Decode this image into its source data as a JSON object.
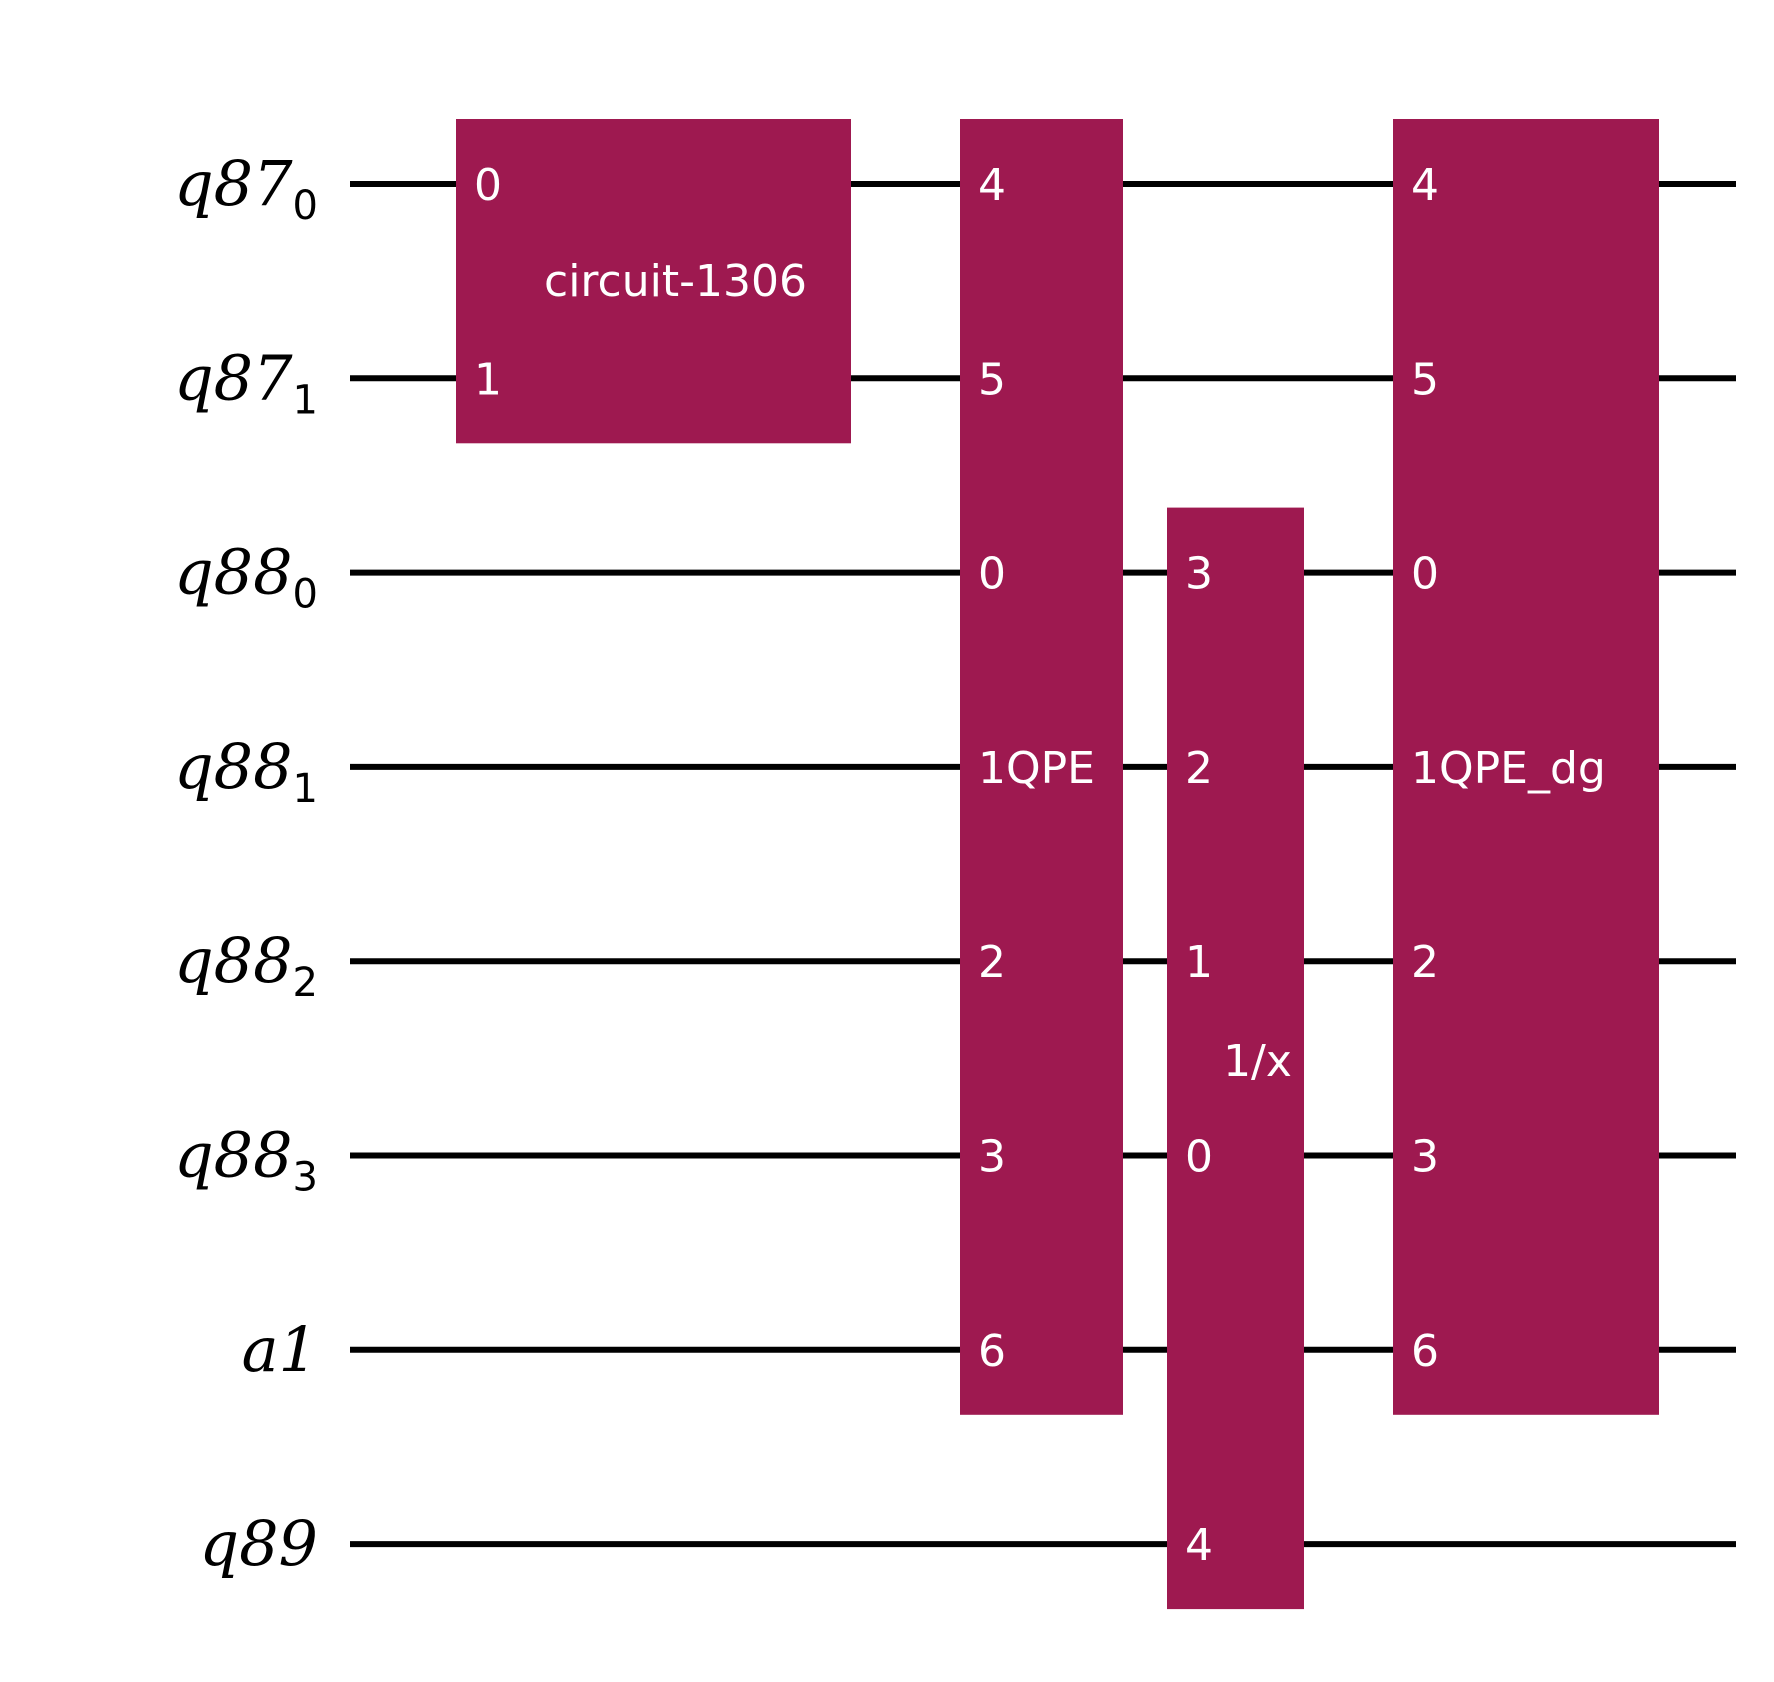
{
  "qubits": [
    {
      "name": "q87",
      "sub": "0"
    },
    {
      "name": "q87",
      "sub": "1"
    },
    {
      "name": "q88",
      "sub": "0"
    },
    {
      "name": "q88",
      "sub": "1"
    },
    {
      "name": "q88",
      "sub": "2"
    },
    {
      "name": "q88",
      "sub": "3"
    },
    {
      "name": "a1",
      "sub": ""
    },
    {
      "name": "q89",
      "sub": ""
    }
  ],
  "gates": [
    {
      "label": "circuit-1306",
      "qubits": [
        0,
        1
      ],
      "pins": [
        "0",
        "1"
      ]
    },
    {
      "label": "QPE",
      "qubits": [
        0,
        1,
        2,
        3,
        4,
        5,
        6
      ],
      "pins": [
        "4",
        "5",
        "0",
        "1",
        "2",
        "3",
        "6"
      ]
    },
    {
      "label": "1/x",
      "qubits": [
        2,
        3,
        4,
        5,
        7
      ],
      "pins": [
        "3",
        "2",
        "1",
        "0",
        "4"
      ]
    },
    {
      "label": "QPE_dg",
      "qubits": [
        0,
        1,
        2,
        3,
        4,
        5,
        6
      ],
      "pins": [
        "4",
        "5",
        "0",
        "1",
        "2",
        "3",
        "6"
      ]
    }
  ],
  "colors": {
    "gate_fill": "#9e1950",
    "wire": "#000000",
    "gate_text": "#ffffff"
  }
}
